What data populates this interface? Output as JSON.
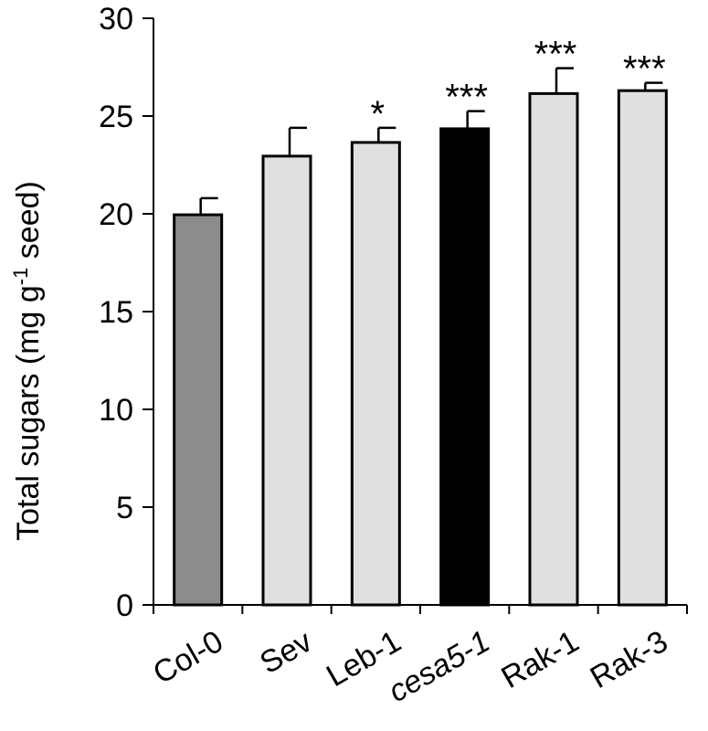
{
  "chart_data": {
    "type": "bar",
    "categories": [
      "Col-0",
      "Sev",
      "Leb-1",
      "cesa5-1",
      "Rak-1",
      "Rak-3"
    ],
    "category_italic": [
      false,
      false,
      false,
      true,
      false,
      false
    ],
    "values": [
      19.95,
      22.95,
      23.65,
      24.35,
      26.15,
      26.3
    ],
    "errors": [
      0.85,
      1.45,
      0.75,
      0.9,
      1.3,
      0.4
    ],
    "significance": [
      "",
      "",
      "*",
      "***",
      "***",
      "***"
    ],
    "bar_colors": [
      "#8c8c8c",
      "#e0e0e0",
      "#e0e0e0",
      "#000000",
      "#e0e0e0",
      "#e0e0e0"
    ],
    "ylabel_prefix": "Total sugars (mg g",
    "ylabel_sup": "-1",
    "ylabel_suffix": " seed)",
    "ylim": [
      0,
      30
    ],
    "yticks": [
      0,
      5,
      10,
      15,
      20,
      25,
      30
    ],
    "grid": false,
    "legend": "none"
  }
}
